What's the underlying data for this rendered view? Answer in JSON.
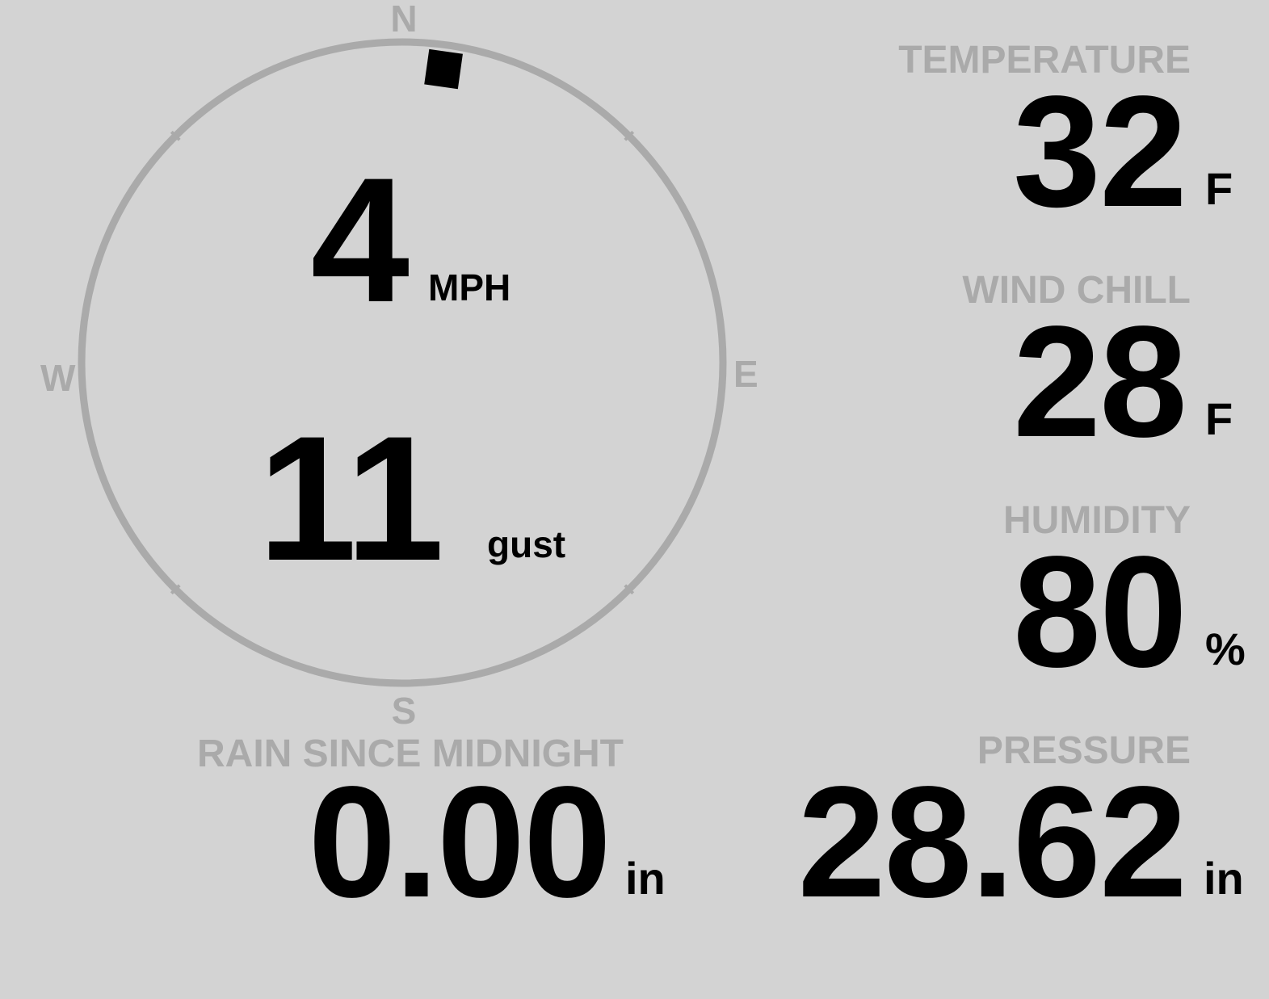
{
  "compass": {
    "directions": {
      "n": "N",
      "e": "E",
      "s": "S",
      "w": "W"
    },
    "wind_direction_degrees": 8,
    "ring_color": "#aaaaaa",
    "needle_color": "#000000",
    "wind_speed": "4",
    "wind_speed_unit": "MPH",
    "gust_speed": "11",
    "gust_label": "gust"
  },
  "readings": {
    "temperature": {
      "label": "TEMPERATURE",
      "value": "32",
      "unit": "F"
    },
    "wind_chill": {
      "label": "WIND CHILL",
      "value": "28",
      "unit": "F"
    },
    "humidity": {
      "label": "HUMIDITY",
      "value": "80",
      "unit": "%"
    },
    "pressure": {
      "label": "PRESSURE",
      "value": "28.62",
      "unit": "in"
    },
    "rain": {
      "label": "RAIN SINCE MIDNIGHT",
      "value": "0.00",
      "unit": "in"
    }
  },
  "colors": {
    "background": "#d3d3d3",
    "label": "#aaaaaa",
    "value": "#000000"
  }
}
